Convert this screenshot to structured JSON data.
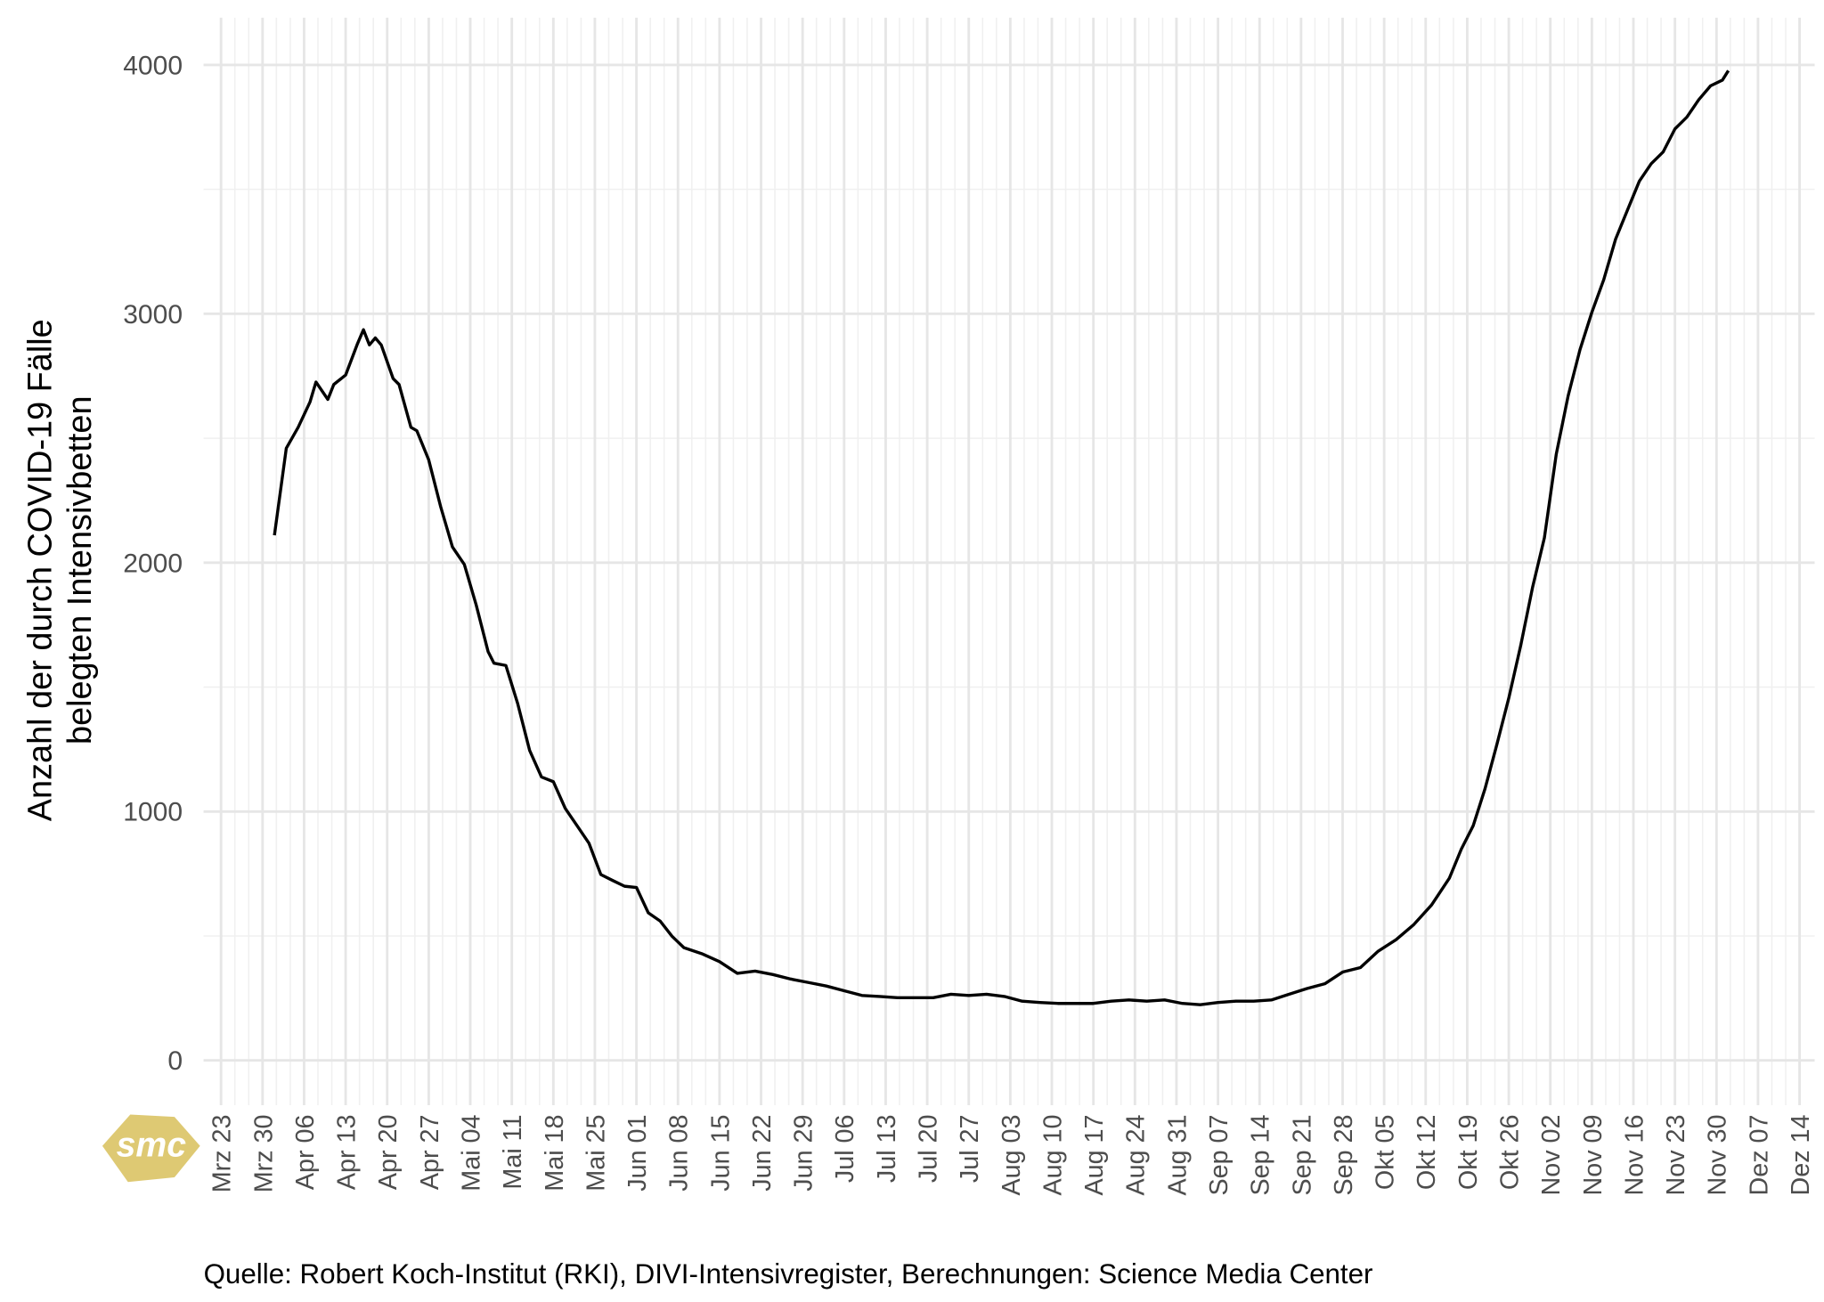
{
  "chart_data": {
    "type": "line",
    "y_label_lines": [
      "Anzahl der durch COVID-19 Fälle",
      "belegten Intensivbetten"
    ],
    "caption": "Quelle: Robert Koch-Institut (RKI), DIVI-Intensivregister, Berechnungen: Science Media Center",
    "logo": "smc",
    "grid": true,
    "xlim": [
      "Mrz 23",
      "Dez 14"
    ],
    "xticks": [
      "Mrz 23",
      "Mrz 30",
      "Apr 06",
      "Apr 13",
      "Apr 20",
      "Apr 27",
      "Mai 04",
      "Mai 11",
      "Mai 18",
      "Mai 25",
      "Jun 01",
      "Jun 08",
      "Jun 15",
      "Jun 22",
      "Jun 29",
      "Jul 06",
      "Jul 13",
      "Jul 20",
      "Jul 27",
      "Aug 03",
      "Aug 10",
      "Aug 17",
      "Aug 24",
      "Aug 31",
      "Sep 07",
      "Sep 14",
      "Sep 21",
      "Sep 28",
      "Okt 05",
      "Okt 12",
      "Okt 19",
      "Okt 26",
      "Nov 02",
      "Nov 09",
      "Nov 16",
      "Nov 23",
      "Nov 30",
      "Dez 07",
      "Dez 14"
    ],
    "ylim": [
      -180,
      4190
    ],
    "yticks": [
      0,
      1000,
      2000,
      3000,
      4000
    ],
    "x": [
      "Apr 01",
      "Apr 03",
      "Apr 05",
      "Apr 07",
      "Apr 08",
      "Apr 10",
      "Apr 11",
      "Apr 13",
      "Apr 15",
      "Apr 16",
      "Apr 17",
      "Apr 18",
      "Apr 19",
      "Apr 21",
      "Apr 22",
      "Apr 24",
      "Apr 25",
      "Apr 27",
      "Apr 29",
      "Mai 01",
      "Mai 03",
      "Mai 05",
      "Mai 07",
      "Mai 08",
      "Mai 10",
      "Mai 12",
      "Mai 14",
      "Mai 16",
      "Mai 18",
      "Mai 20",
      "Mai 22",
      "Mai 24",
      "Mai 26",
      "Mai 28",
      "Mai 30",
      "Jun 01",
      "Jun 03",
      "Jun 05",
      "Jun 07",
      "Jun 09",
      "Jun 12",
      "Jun 15",
      "Jun 18",
      "Jun 21",
      "Jun 24",
      "Jun 27",
      "Jun 30",
      "Jul 03",
      "Jul 06",
      "Jul 09",
      "Jul 12",
      "Jul 15",
      "Jul 18",
      "Jul 21",
      "Jul 24",
      "Jul 27",
      "Jul 30",
      "Aug 02",
      "Aug 05",
      "Aug 08",
      "Aug 11",
      "Aug 14",
      "Aug 17",
      "Aug 20",
      "Aug 23",
      "Aug 26",
      "Aug 29",
      "Sep 01",
      "Sep 04",
      "Sep 07",
      "Sep 10",
      "Sep 13",
      "Sep 16",
      "Sep 19",
      "Sep 22",
      "Sep 25",
      "Sep 28",
      "Okt 01",
      "Okt 04",
      "Okt 07",
      "Okt 10",
      "Okt 13",
      "Okt 16",
      "Okt 18",
      "Okt 20",
      "Okt 22",
      "Okt 24",
      "Okt 26",
      "Okt 28",
      "Okt 30",
      "Nov 01",
      "Nov 03",
      "Nov 05",
      "Nov 07",
      "Nov 09",
      "Nov 11",
      "Nov 13",
      "Nov 15",
      "Nov 17",
      "Nov 19",
      "Nov 21",
      "Nov 23",
      "Nov 25",
      "Nov 27",
      "Nov 29",
      "Dez 01",
      "Dez 02"
    ],
    "series": [
      {
        "color": "#000000",
        "values": [
          2110,
          2460,
          2544,
          2646,
          2726,
          2656,
          2716,
          2754,
          2880,
          2936,
          2875,
          2903,
          2875,
          2740,
          2716,
          2544,
          2530,
          2413,
          2226,
          2063,
          1993,
          1830,
          1643,
          1596,
          1587,
          1433,
          1246,
          1139,
          1120,
          1013,
          943,
          873,
          747,
          723,
          700,
          695,
          593,
          560,
          499,
          453,
          429,
          397,
          350,
          359,
          345,
          327,
          313,
          299,
          280,
          261,
          257,
          252,
          252,
          252,
          266,
          261,
          266,
          257,
          238,
          233,
          229,
          229,
          229,
          238,
          243,
          238,
          243,
          229,
          224,
          233,
          238,
          238,
          243,
          266,
          289,
          308,
          355,
          373,
          439,
          485,
          546,
          625,
          733,
          849,
          943,
          1092,
          1270,
          1456,
          1666,
          1900,
          2100,
          2436,
          2670,
          2856,
          3006,
          3137,
          3300,
          3417,
          3533,
          3603,
          3650,
          3743,
          3790,
          3860,
          3916,
          3939,
          3977
        ]
      }
    ]
  }
}
